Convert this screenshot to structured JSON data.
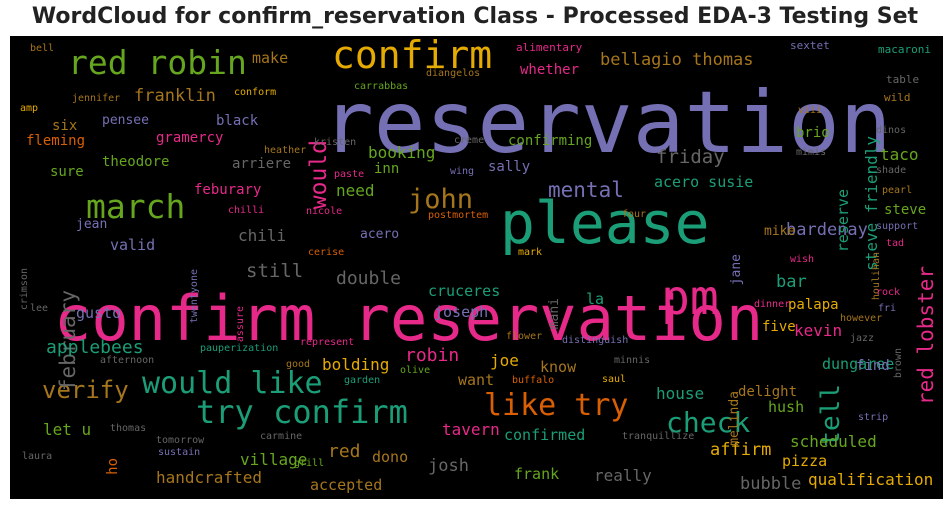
{
  "chart_data": {
    "type": "wordcloud",
    "title": "WordCloud for confirm_reservation Class - Processed EDA-3 Testing Set",
    "background": "#000000",
    "palette": "Dark2",
    "words": [
      {
        "text": "reservation",
        "color": "#7570b3"
      },
      {
        "text": "confirm reservation",
        "color": "#e7298a"
      },
      {
        "text": "please",
        "color": "#1b9e77"
      },
      {
        "text": "pm",
        "color": "#e7298a"
      },
      {
        "text": "confirm",
        "color": "#e6ab02"
      },
      {
        "text": "red robin",
        "color": "#66a61e"
      },
      {
        "text": "try confirm",
        "color": "#1b9e77"
      },
      {
        "text": "would like",
        "color": "#1b9e77"
      },
      {
        "text": "march",
        "color": "#66a61e"
      },
      {
        "text": "like try",
        "color": "#d95f02"
      },
      {
        "text": "check",
        "color": "#1b9e77"
      },
      {
        "text": "john",
        "color": "#a6761d"
      },
      {
        "text": "verify",
        "color": "#a6761d"
      },
      {
        "text": "red lobster",
        "color": "#e7298a"
      },
      {
        "text": "would",
        "color": "#e7298a"
      },
      {
        "text": "february",
        "color": "#666666"
      },
      {
        "text": "tell",
        "color": "#1b9e77"
      },
      {
        "text": "mental",
        "color": "#7570b3"
      },
      {
        "text": "bellagio thomas",
        "color": "#a6761d"
      },
      {
        "text": "franklin",
        "color": "#a6761d"
      },
      {
        "text": "still",
        "color": "#666666"
      },
      {
        "text": "applebees",
        "color": "#1b9e77"
      },
      {
        "text": "robin",
        "color": "#e7298a"
      },
      {
        "text": "affirm",
        "color": "#e6ab02"
      },
      {
        "text": "bardenay",
        "color": "#7570b3"
      },
      {
        "text": "friday",
        "color": "#666666"
      },
      {
        "text": "double",
        "color": "#666666"
      },
      {
        "text": "steve friendly",
        "color": "#1b9e77"
      },
      {
        "text": "reserve",
        "color": "#1b9e77"
      },
      {
        "text": "red",
        "color": "#a6761d"
      },
      {
        "text": "josh",
        "color": "#666666"
      },
      {
        "text": "tavern",
        "color": "#e7298a"
      },
      {
        "text": "bubble",
        "color": "#666666"
      },
      {
        "text": "qualification",
        "color": "#e6ab02"
      },
      {
        "text": "scheduled",
        "color": "#66a61e"
      },
      {
        "text": "house",
        "color": "#1b9e77"
      },
      {
        "text": "let u",
        "color": "#66a61e"
      },
      {
        "text": "make",
        "color": "#a6761d"
      },
      {
        "text": "whether",
        "color": "#e7298a"
      },
      {
        "text": "booking",
        "color": "#66a61e"
      },
      {
        "text": "acero susie",
        "color": "#1b9e77"
      },
      {
        "text": "taco",
        "color": "#66a61e"
      },
      {
        "text": "bar",
        "color": "#1b9e77"
      },
      {
        "text": "kevin",
        "color": "#e7298a"
      },
      {
        "text": "joe",
        "color": "#e6ab02"
      },
      {
        "text": "bolding",
        "color": "#e6ab02"
      },
      {
        "text": "cruceres",
        "color": "#1b9e77"
      },
      {
        "text": "joseph",
        "color": "#7570b3"
      },
      {
        "text": "need",
        "color": "#66a61e"
      },
      {
        "text": "chili",
        "color": "#666666"
      },
      {
        "text": "valid",
        "color": "#7570b3"
      },
      {
        "text": "gusto",
        "color": "#7570b3"
      },
      {
        "text": "village",
        "color": "#66a61e"
      },
      {
        "text": "handcrafted",
        "color": "#a6761d"
      },
      {
        "text": "accepted",
        "color": "#a6761d"
      },
      {
        "text": "frank",
        "color": "#66a61e"
      },
      {
        "text": "really",
        "color": "#666666"
      },
      {
        "text": "pizza",
        "color": "#e6ab02"
      },
      {
        "text": "dungaree",
        "color": "#1b9e77"
      },
      {
        "text": "delight",
        "color": "#a6761d"
      },
      {
        "text": "find",
        "color": "#7570b3"
      },
      {
        "text": "hush",
        "color": "#66a61e"
      },
      {
        "text": "know",
        "color": "#a6761d"
      },
      {
        "text": "want",
        "color": "#a6761d"
      },
      {
        "text": "confirmed",
        "color": "#1b9e77"
      },
      {
        "text": "dono",
        "color": "#a6761d"
      },
      {
        "text": "five",
        "color": "#e6ab02"
      },
      {
        "text": "palapa",
        "color": "#e6ab02"
      },
      {
        "text": "mike",
        "color": "#a6761d"
      },
      {
        "text": "steve",
        "color": "#66a61e"
      },
      {
        "text": "la",
        "color": "#1b9e77"
      },
      {
        "text": "mani",
        "color": "#666666"
      },
      {
        "text": "jane",
        "color": "#7570b3"
      },
      {
        "text": "melinda",
        "color": "#a6761d"
      },
      {
        "text": "brio",
        "color": "#66a61e"
      },
      {
        "text": "confirming",
        "color": "#66a61e"
      },
      {
        "text": "sally",
        "color": "#7570b3"
      },
      {
        "text": "inn",
        "color": "#66a61e"
      },
      {
        "text": "theodore",
        "color": "#66a61e"
      },
      {
        "text": "arriere",
        "color": "#666666"
      },
      {
        "text": "black",
        "color": "#7570b3"
      },
      {
        "text": "gramercy",
        "color": "#e7298a"
      },
      {
        "text": "pensee",
        "color": "#7570b3"
      },
      {
        "text": "six",
        "color": "#a6761d"
      },
      {
        "text": "fleming",
        "color": "#d95f02"
      },
      {
        "text": "sure",
        "color": "#66a61e"
      },
      {
        "text": "feburary",
        "color": "#e7298a"
      },
      {
        "text": "jean",
        "color": "#7570b3"
      },
      {
        "text": "acero",
        "color": "#7570b3"
      },
      {
        "text": "ho",
        "color": "#d95f02"
      },
      {
        "text": "alimentary",
        "color": "#e7298a"
      },
      {
        "text": "sextet",
        "color": "#7570b3"
      },
      {
        "text": "macaroni",
        "color": "#1b9e77"
      },
      {
        "text": "table",
        "color": "#666666"
      },
      {
        "text": "wild",
        "color": "#a6761d"
      },
      {
        "text": "dinos",
        "color": "#666666"
      },
      {
        "text": "viii",
        "color": "#a6761d"
      },
      {
        "text": "mimis",
        "color": "#666666"
      },
      {
        "text": "shade",
        "color": "#666666"
      },
      {
        "text": "pearl",
        "color": "#a6761d"
      },
      {
        "text": "support",
        "color": "#7570b3"
      },
      {
        "text": "tad",
        "color": "#e7298a"
      },
      {
        "text": "houlihan",
        "color": "#a6761d"
      },
      {
        "text": "rock",
        "color": "#e7298a"
      },
      {
        "text": "fri",
        "color": "#7570b3"
      },
      {
        "text": "however",
        "color": "#a6761d"
      },
      {
        "text": "brown",
        "color": "#666666"
      },
      {
        "text": "jazz",
        "color": "#666666"
      },
      {
        "text": "strip",
        "color": "#7570b3"
      },
      {
        "text": "wish",
        "color": "#e7298a"
      },
      {
        "text": "dinner",
        "color": "#e7298a"
      },
      {
        "text": "four",
        "color": "#a6761d"
      },
      {
        "text": "mark",
        "color": "#e6ab02"
      },
      {
        "text": "bell",
        "color": "#a6761d"
      },
      {
        "text": "amp",
        "color": "#e6ab02"
      },
      {
        "text": "jennifer",
        "color": "#a6761d"
      },
      {
        "text": "conform",
        "color": "#e6ab02"
      },
      {
        "text": "carrabbas",
        "color": "#66a61e"
      },
      {
        "text": "diangelos",
        "color": "#a6761d"
      },
      {
        "text": "heather",
        "color": "#a6761d"
      },
      {
        "text": "kristen",
        "color": "#666666"
      },
      {
        "text": "creme",
        "color": "#666666"
      },
      {
        "text": "paste",
        "color": "#e7298a"
      },
      {
        "text": "wing",
        "color": "#7570b3"
      },
      {
        "text": "chilli",
        "color": "#e7298a"
      },
      {
        "text": "nicole",
        "color": "#e7298a"
      },
      {
        "text": "postmortem",
        "color": "#d95f02"
      },
      {
        "text": "crimson",
        "color": "#666666"
      },
      {
        "text": "twentyone",
        "color": "#7570b3"
      },
      {
        "text": "cerise",
        "color": "#d95f02"
      },
      {
        "text": "assure",
        "color": "#e7298a"
      },
      {
        "text": "lee",
        "color": "#666666"
      },
      {
        "text": "represent",
        "color": "#e7298a"
      },
      {
        "text": "pauperization",
        "color": "#1b9e77"
      },
      {
        "text": "afternoon",
        "color": "#666666"
      },
      {
        "text": "good",
        "color": "#a6761d"
      },
      {
        "text": "garden",
        "color": "#1b9e77"
      },
      {
        "text": "olive",
        "color": "#66a61e"
      },
      {
        "text": "buffalo",
        "color": "#d95f02"
      },
      {
        "text": "minnis",
        "color": "#666666"
      },
      {
        "text": "saul",
        "color": "#e6ab02"
      },
      {
        "text": "flower",
        "color": "#a6761d"
      },
      {
        "text": "distinguish",
        "color": "#7570b3"
      },
      {
        "text": "laura",
        "color": "#666666"
      },
      {
        "text": "thomas",
        "color": "#666666"
      },
      {
        "text": "tomorrow",
        "color": "#666666"
      },
      {
        "text": "sustain",
        "color": "#7570b3"
      },
      {
        "text": "carmine",
        "color": "#666666"
      },
      {
        "text": "grill",
        "color": "#66a61e"
      },
      {
        "text": "tranquillize",
        "color": "#666666"
      }
    ]
  }
}
